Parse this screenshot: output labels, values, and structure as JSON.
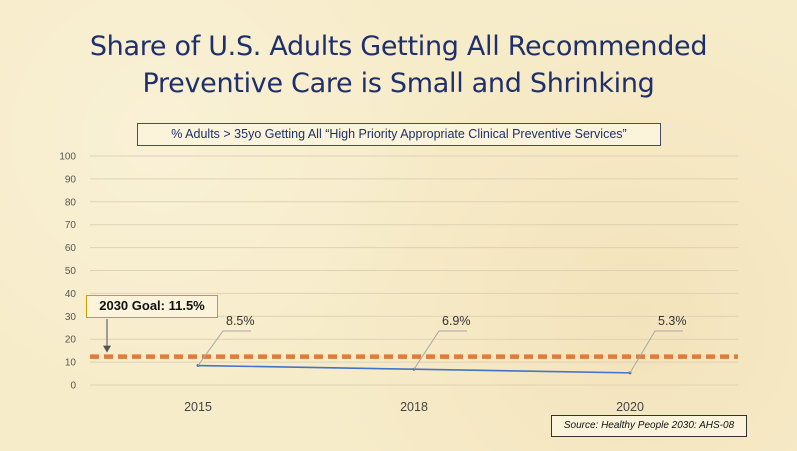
{
  "slide": {
    "title_line1": "Share of U.S. Adults Getting All Recommended",
    "title_line2": "Preventive Care is Small and Shrinking",
    "source": "Source: Healthy People 2030: AHS-08"
  },
  "chart_data": {
    "type": "line",
    "title": "% Adults > 35yo Getting All “High Priority Appropriate Clinical Preventive Services”",
    "categories": [
      "2015",
      "2018",
      "2020"
    ],
    "series": [
      {
        "values": [
          8.5,
          6.9,
          5.3
        ],
        "labels": [
          "8.5%",
          "6.9%",
          "5.3%"
        ],
        "color": "#4472c4"
      }
    ],
    "goal": {
      "value": 11.5,
      "label": "2030 Goal: 11.5%",
      "color": "#e07b39"
    },
    "ylim": [
      0,
      100
    ],
    "yticks": [
      0,
      10,
      20,
      30,
      40,
      50,
      60,
      70,
      80,
      90,
      100
    ],
    "grid": true
  }
}
